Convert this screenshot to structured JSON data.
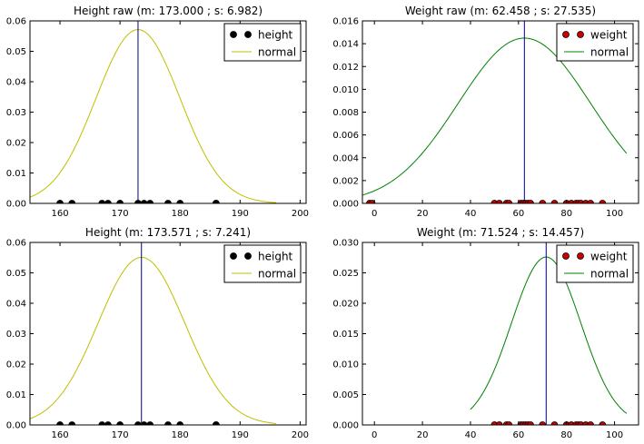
{
  "chart_data": [
    {
      "type": "scatter",
      "title": "Height raw (m: 173.000 ; s: 6.982)",
      "xlabel": "",
      "ylabel": "",
      "xlim": [
        155,
        201
      ],
      "ylim": [
        0,
        0.06
      ],
      "xticks": [
        160,
        170,
        180,
        190,
        200
      ],
      "yticks": [
        0.0,
        0.01,
        0.02,
        0.03,
        0.04,
        0.05,
        0.06
      ],
      "ytick_decimals": 2,
      "grid": false,
      "legend_position": "top-right",
      "mean_line": 173.0,
      "series": [
        {
          "name": "height",
          "kind": "points",
          "color": "#000000",
          "x": [
            160,
            162,
            167,
            168,
            170,
            173,
            174,
            175,
            178,
            180,
            186,
            186
          ]
        },
        {
          "name": "normal",
          "kind": "normal_curve",
          "color": "#bfbf00",
          "mean": 173.0,
          "sd": 6.982,
          "x_range": [
            150,
            196
          ]
        }
      ]
    },
    {
      "type": "scatter",
      "title": "Weight raw (m: 62.458 ; s: 27.535)",
      "xlabel": "",
      "ylabel": "",
      "xlim": [
        -5,
        110
      ],
      "ylim": [
        0,
        0.016
      ],
      "xticks": [
        0,
        20,
        40,
        60,
        80,
        100
      ],
      "yticks": [
        0.0,
        0.002,
        0.004,
        0.006,
        0.008,
        0.01,
        0.012,
        0.014,
        0.016
      ],
      "ytick_decimals": 3,
      "grid": false,
      "legend_position": "top-right",
      "mean_line": 62.458,
      "series": [
        {
          "name": "weight",
          "kind": "points",
          "color": "#cc0000",
          "x": [
            -2,
            -1,
            50,
            52,
            55,
            56,
            61,
            62,
            63,
            64,
            65,
            70,
            75,
            80,
            82,
            84,
            85,
            86,
            88,
            90,
            95
          ]
        },
        {
          "name": "normal",
          "kind": "normal_curve",
          "color": "#008000",
          "mean": 62.458,
          "sd": 27.535,
          "x_range": [
            -10,
            105
          ]
        }
      ]
    },
    {
      "type": "scatter",
      "title": "Height (m: 173.571 ; s: 7.241)",
      "xlabel": "",
      "ylabel": "",
      "xlim": [
        155,
        201
      ],
      "ylim": [
        0,
        0.06
      ],
      "xticks": [
        160,
        170,
        180,
        190,
        200
      ],
      "yticks": [
        0.0,
        0.01,
        0.02,
        0.03,
        0.04,
        0.05,
        0.06
      ],
      "ytick_decimals": 2,
      "grid": false,
      "legend_position": "top-right",
      "mean_line": 173.571,
      "series": [
        {
          "name": "height",
          "kind": "points",
          "color": "#000000",
          "x": [
            160,
            162,
            167,
            168,
            170,
            173,
            174,
            175,
            178,
            180,
            186,
            186
          ]
        },
        {
          "name": "normal",
          "kind": "normal_curve",
          "color": "#bfbf00",
          "mean": 173.571,
          "sd": 7.241,
          "x_range": [
            150,
            196
          ]
        }
      ]
    },
    {
      "type": "scatter",
      "title": "Weight (m: 71.524 ; s: 14.457)",
      "xlabel": "",
      "ylabel": "",
      "xlim": [
        -5,
        110
      ],
      "ylim": [
        0,
        0.03
      ],
      "xticks": [
        0,
        20,
        40,
        60,
        80,
        100
      ],
      "yticks": [
        0.0,
        0.005,
        0.01,
        0.015,
        0.02,
        0.025,
        0.03
      ],
      "ytick_decimals": 3,
      "grid": false,
      "legend_position": "top-right",
      "mean_line": 71.524,
      "series": [
        {
          "name": "weight",
          "kind": "points",
          "color": "#cc0000",
          "x": [
            50,
            52,
            55,
            56,
            61,
            62,
            63,
            64,
            65,
            70,
            75,
            80,
            82,
            84,
            85,
            86,
            88,
            90,
            95
          ]
        },
        {
          "name": "normal",
          "kind": "normal_curve",
          "color": "#008000",
          "mean": 71.524,
          "sd": 14.457,
          "x_range": [
            40,
            105
          ]
        }
      ]
    }
  ]
}
